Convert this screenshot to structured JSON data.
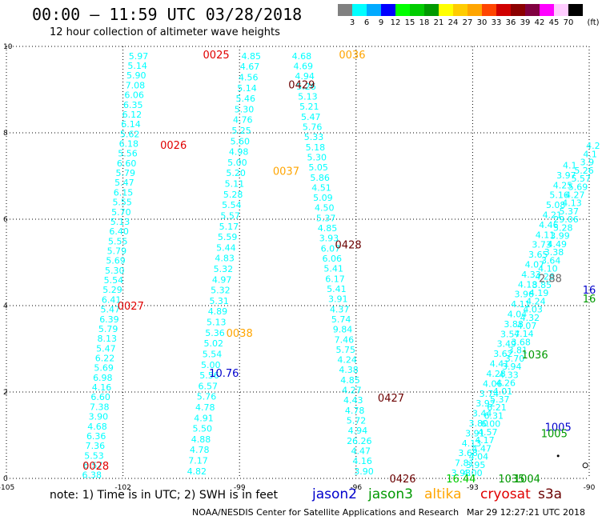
{
  "title": "00:00 – 11:59 UTC 03/28/2018",
  "subtitle": "12 hour collection of altimeter wave heights",
  "legend": {
    "unit": "(ft)",
    "bins": [
      {
        "label": "3",
        "color": "#808080"
      },
      {
        "label": "6",
        "color": "#00ffff"
      },
      {
        "label": "9",
        "color": "#00aaff"
      },
      {
        "label": "12",
        "color": "#0000ff"
      },
      {
        "label": "15",
        "color": "#00ff00"
      },
      {
        "label": "18",
        "color": "#00cc00"
      },
      {
        "label": "21",
        "color": "#009900"
      },
      {
        "label": "24",
        "color": "#ffff00"
      },
      {
        "label": "27",
        "color": "#ffcc00"
      },
      {
        "label": "30",
        "color": "#ffa500"
      },
      {
        "label": "33",
        "color": "#ff4500"
      },
      {
        "label": "36",
        "color": "#d00000"
      },
      {
        "label": "39",
        "color": "#8b0000"
      },
      {
        "label": "42",
        "color": "#800040"
      },
      {
        "label": "45",
        "color": "#ff00ff"
      },
      {
        "label": "70",
        "color": "#ffccff"
      },
      {
        "label": "",
        "color": "#000000"
      }
    ]
  },
  "axes": {
    "x_ticks": [
      "-105",
      "-102",
      "-99",
      "-96",
      "-93",
      "-90"
    ],
    "y_ticks": [
      "0",
      "2",
      "4",
      "6",
      "8",
      "10"
    ]
  },
  "map": {
    "xlim": [
      -105,
      -90
    ],
    "ylim": [
      0,
      10
    ],
    "tracks": [
      {
        "lon0": -101.6,
        "lat0": 9.78,
        "lon1": -102.8,
        "lat1": 0.08,
        "color": "#00ffff",
        "labels": [
          "5.97",
          "5.14",
          "5.90",
          "7.08",
          "6.06",
          "6.35",
          "6.12",
          "6.14",
          "5.62",
          "6.18",
          "5.56",
          "6.60",
          "5.79",
          "5.47",
          "6.15",
          "5.55",
          "5.70",
          "5.13",
          "6.40",
          "5.55",
          "5.79",
          "5.69",
          "5.30",
          "5.54",
          "5.29",
          "6.41",
          "5.47",
          "6.39",
          "5.79",
          "8.13",
          "5.47",
          "6.22",
          "5.69",
          "6.98",
          "4.16",
          "6.60",
          "7.38",
          "3.90",
          "4.68",
          "6.36",
          "7.36",
          "5.53",
          "6.57",
          "6.38"
        ]
      },
      {
        "lon0": -98.7,
        "lat0": 9.78,
        "lon1": -100.1,
        "lat1": 0.17,
        "color": "#00ffff",
        "labels": [
          "4.85",
          "4.67",
          "4.56",
          "5.14",
          "5.46",
          "5.30",
          "4.76",
          "5.25",
          "5.60",
          "4.98",
          "5.00",
          "5.20",
          "5.11",
          "5.28",
          "5.54",
          "5.57",
          "5.17",
          "5.59",
          "5.44",
          "4.83",
          "5.32",
          "4.97",
          "5.32",
          "5.31",
          "4.89",
          "5.13",
          "5.36",
          "5.02",
          "5.54",
          "5.00",
          "5.56",
          "6.57",
          "5.76",
          "4.78",
          "4.91",
          "5.50",
          "4.88",
          "4.78",
          "7.17",
          "4.82"
        ]
      },
      {
        "lon0": -97.4,
        "lat0": 9.78,
        "lon1": -95.8,
        "lat1": 0.17,
        "color": "#00ffff",
        "labels": [
          "4.68",
          "4.69",
          "4.94",
          "5.26",
          "5.13",
          "5.21",
          "5.47",
          "5.76",
          "5.33",
          "5.18",
          "5.30",
          "5.05",
          "5.86",
          "4.51",
          "5.09",
          "4.50",
          "5.37",
          "4.85",
          "3.93",
          "6.07",
          "6.06",
          "5.41",
          "6.17",
          "5.41",
          "3.91",
          "4.37",
          "5.74",
          "9.84",
          "7.46",
          "5.75",
          "4.24",
          "4.38",
          "4.85",
          "4.27",
          "4.43",
          "4.78",
          "5.72",
          "4.94",
          "26.26",
          "4.47",
          "4.16",
          "3.90"
        ]
      },
      {
        "lon0": -89.9,
        "lat0": 7.7,
        "lon1": -93.0,
        "lat1": 0.13,
        "color": "#00ffff",
        "labels": [
          "4.2",
          "4.1",
          "3.9",
          "5.26",
          "5.57",
          "5.69",
          "4.27",
          "4.13",
          "5.37",
          "29.06",
          "5.28",
          "3.99",
          "4.49",
          "3.38",
          "3.64",
          "4.10",
          "4.26",
          "3.85",
          "4.19",
          "4.24",
          "4.03",
          "4.32",
          "4.07",
          "4.14",
          "3.68",
          "3.81",
          "3.70",
          "3.94",
          "4.33",
          "4.26",
          "4.01",
          "5.37",
          "6.21",
          "6.31",
          "6.00",
          "4.57",
          "4.17",
          "4.47",
          "4.04",
          "3.95",
          "4.00"
        ]
      },
      {
        "lon0": -90.5,
        "lat0": 7.25,
        "lon1": -93.3,
        "lat1": 0.13,
        "color": "#00ffff",
        "labels": [
          "4.1",
          "3.97",
          "4.25",
          "5.16",
          "5.08",
          "4.21",
          "4.46",
          "4.11",
          "3.73",
          "3.65",
          "4.07",
          "4.33",
          "4.18",
          "3.96",
          "4.11",
          "4.04",
          "3.88",
          "3.57",
          "3.49",
          "3.62",
          "4.41",
          "4.28",
          "4.06",
          "3.74",
          "3.92",
          "3.44",
          "3.80",
          "3.91",
          "4.13",
          "3.68",
          "7.81",
          "3.93"
        ]
      }
    ],
    "labels": [
      {
        "text": "0025",
        "lon": -99.6,
        "lat": 9.8,
        "color": "#e00000"
      },
      {
        "text": "0036",
        "lon": -96.1,
        "lat": 9.8,
        "color": "#ffa500"
      },
      {
        "text": "0429",
        "lon": -97.4,
        "lat": 9.1,
        "color": "#6b0000"
      },
      {
        "text": "0026",
        "lon": -100.7,
        "lat": 7.7,
        "color": "#e00000"
      },
      {
        "text": "0037",
        "lon": -97.8,
        "lat": 7.1,
        "color": "#ffa500"
      },
      {
        "text": "0428",
        "lon": -96.2,
        "lat": 5.4,
        "color": "#6b0000"
      },
      {
        "text": "0027",
        "lon": -101.8,
        "lat": 3.98,
        "color": "#e00000"
      },
      {
        "text": "0038",
        "lon": -99.0,
        "lat": 3.35,
        "color": "#ffa500"
      },
      {
        "text": "0427",
        "lon": -95.1,
        "lat": 1.85,
        "color": "#6b0000"
      },
      {
        "text": "0028",
        "lon": -102.7,
        "lat": 0.28,
        "color": "#e00000"
      },
      {
        "text": "0426",
        "lon": -94.8,
        "lat": -0.02,
        "color": "#6b0000"
      },
      {
        "text": "10.76",
        "lon": -99.4,
        "lat": 2.43,
        "color": "#0000cc"
      },
      {
        "text": "2.88",
        "lon": -91.0,
        "lat": 4.62,
        "color": "#666666"
      },
      {
        "text": "1036",
        "lon": -91.4,
        "lat": 2.85,
        "color": "#009900"
      },
      {
        "text": "1005",
        "lon": -90.8,
        "lat": 1.18,
        "color": "#0000cc"
      },
      {
        "text": "1005",
        "lon": -90.9,
        "lat": 1.03,
        "color": "#009900"
      },
      {
        "text": "1035",
        "lon": -92.0,
        "lat": -0.02,
        "color": "#009900"
      },
      {
        "text": "1004",
        "lon": -91.6,
        "lat": -0.02,
        "color": "#009900"
      },
      {
        "text": "16.44",
        "lon": -93.3,
        "lat": -0.02,
        "color": "#00cc00"
      },
      {
        "text": "16",
        "lon": -90.0,
        "lat": 4.35,
        "color": "#0000cc"
      },
      {
        "text": "16",
        "lon": -90.0,
        "lat": 4.15,
        "color": "#009900"
      }
    ],
    "markers": [
      {
        "lon": -90.1,
        "lat": 0.3,
        "shape": "circle"
      },
      {
        "lon": -90.8,
        "lat": 0.52,
        "shape": "dot"
      }
    ]
  },
  "note": "note: 1) Time is in UTC; 2) SWH is in feet",
  "satellites": [
    {
      "name": "jason2",
      "color": "#0000cc"
    },
    {
      "name": "jason3",
      "color": "#009900"
    },
    {
      "name": "altika",
      "color": "#ffa500"
    },
    {
      "name": "cryosat",
      "color": "#e00000"
    },
    {
      "name": "s3a",
      "color": "#6b0000"
    }
  ],
  "footer": "NOAA/NESDIS Center for Satellite Applications and Research",
  "footer_time": "Mar 29 12:27:21 UTC 2018"
}
